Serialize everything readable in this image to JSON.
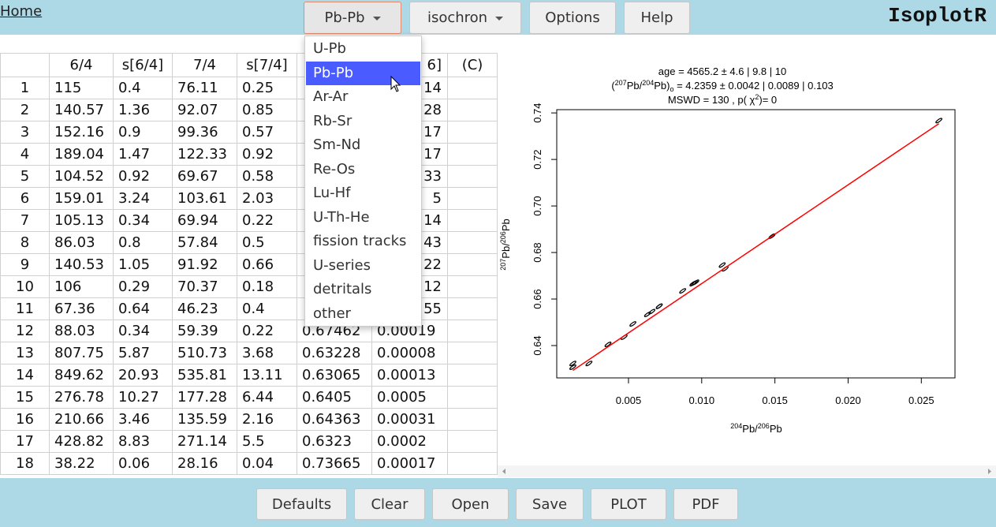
{
  "nav": {
    "home": "Home",
    "menus": [
      "Pb-Pb",
      "isochron",
      "Options",
      "Help"
    ],
    "app_title": "IsoplotR"
  },
  "dropdown": {
    "items": [
      "U-Pb",
      "Pb-Pb",
      "Ar-Ar",
      "Rb-Sr",
      "Sm-Nd",
      "Re-Os",
      "Lu-Hf",
      "U-Th-He",
      "fission tracks",
      "U-series",
      "detritals",
      "other"
    ],
    "selected": 1
  },
  "table": {
    "header": [
      null,
      "6/4",
      "s[6/4]",
      "7/4",
      "s[7/4]",
      null,
      "6]",
      "(C)"
    ],
    "rows": [
      [
        1,
        115,
        0.4,
        76.11,
        0.25,
        null,
        "14",
        null
      ],
      [
        2,
        140.57,
        1.36,
        92.07,
        0.85,
        null,
        "28",
        null
      ],
      [
        3,
        152.16,
        0.9,
        99.36,
        0.57,
        null,
        "17",
        null
      ],
      [
        4,
        189.04,
        1.47,
        122.33,
        0.92,
        null,
        "17",
        null
      ],
      [
        5,
        104.52,
        0.92,
        69.67,
        0.58,
        null,
        "33",
        null
      ],
      [
        6,
        159.01,
        3.24,
        103.61,
        2.03,
        null,
        "5",
        null
      ],
      [
        7,
        105.13,
        0.34,
        69.94,
        0.22,
        null,
        "14",
        null
      ],
      [
        8,
        86.03,
        0.8,
        57.84,
        0.5,
        null,
        "43",
        null
      ],
      [
        9,
        140.53,
        1.05,
        91.92,
        0.66,
        null,
        "22",
        null
      ],
      [
        10,
        106,
        0.29,
        70.37,
        0.18,
        null,
        "12",
        null
      ],
      [
        11,
        67.36,
        0.64,
        46.23,
        0.4,
        null,
        "55",
        null
      ],
      [
        12,
        88.03,
        0.34,
        59.39,
        0.22,
        0.67462,
        0.00019,
        null
      ],
      [
        13,
        807.75,
        5.87,
        510.73,
        3.68,
        0.63228,
        8e-05,
        null
      ],
      [
        14,
        849.62,
        20.93,
        535.81,
        13.11,
        0.63065,
        0.00013,
        null
      ],
      [
        15,
        276.78,
        10.27,
        177.28,
        6.44,
        0.6405,
        0.0005,
        null
      ],
      [
        16,
        210.66,
        3.46,
        135.59,
        2.16,
        0.64363,
        0.00031,
        null
      ],
      [
        17,
        428.82,
        8.83,
        271.14,
        5.5,
        0.6323,
        0.0002,
        null
      ],
      [
        18,
        38.22,
        0.06,
        28.16,
        0.04,
        0.73665,
        0.00017,
        null
      ]
    ]
  },
  "chart_data": {
    "type": "scatter",
    "title": "age = 4565.2 ± 4.6 | 9.8 | 10",
    "subtitle": [
      "(",
      "207",
      "Pb/",
      "204",
      "Pb)",
      "o",
      " = 4.2359 ± 0.0042 | 0.0089 | 0.103"
    ],
    "note": [
      "MSWD = 130 , p( χ",
      "2",
      ")= 0"
    ],
    "x_label": [
      "204",
      "Pb/",
      "206",
      "Pb"
    ],
    "y_label": [
      "207",
      "Pb/",
      "206",
      "Pb"
    ],
    "xlim": [
      0.0001,
      0.0273
    ],
    "ylim": [
      0.6261,
      0.7414
    ],
    "xticks": [
      0.005,
      {
        "value": 0.01,
        "label": "0.010"
      },
      0.015,
      {
        "value": 0.02,
        "label": "0.020"
      },
      0.025
    ],
    "yticks": [
      0.64,
      0.66,
      0.68,
      {
        "value": 0.7,
        "label": "0.70"
      },
      0.72,
      0.74
    ],
    "x": [
      0.0087,
      0.0071,
      0.0066,
      0.0053,
      0.0096,
      0.0063,
      0.0095,
      0.0116,
      0.0071,
      0.0094,
      0.0148,
      0.0114,
      0.0012,
      0.0012,
      0.0036,
      0.0047,
      0.0023,
      0.0262
    ],
    "values": [
      0.6635,
      0.6569,
      0.6546,
      0.6493,
      0.6672,
      0.6534,
      0.6669,
      0.673,
      0.6569,
      0.6666,
      0.687,
      0.6746,
      0.6323,
      0.6307,
      0.6405,
      0.6436,
      0.6323,
      0.7367
    ],
    "color": "#000000",
    "fit_line": {
      "x": [
        0.0012,
        0.0262
      ],
      "y": [
        0.6293,
        0.7354
      ],
      "color": "#ff0000"
    }
  },
  "footer": {
    "buttons": [
      "Defaults",
      "Clear",
      "Open",
      "Save",
      "PLOT",
      "PDF"
    ]
  }
}
